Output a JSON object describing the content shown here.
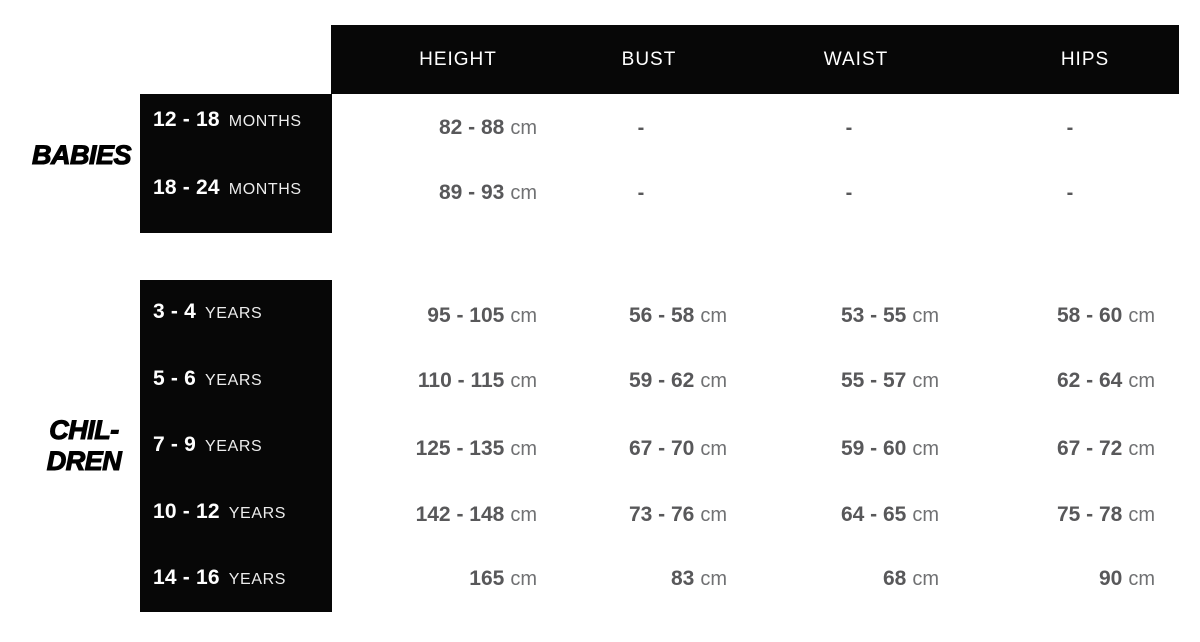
{
  "header": {
    "columns": [
      "HEIGHT",
      "BUST",
      "WAIST",
      "HIPS"
    ]
  },
  "sections": [
    {
      "label_lines": [
        "BABIES"
      ],
      "rows": [
        {
          "age": "12 - 18",
          "age_unit": "MONTHS",
          "height": {
            "value": "82 - 88",
            "unit": "cm"
          },
          "bust": {
            "value": "-",
            "unit": ""
          },
          "waist": {
            "value": "-",
            "unit": ""
          },
          "hips": {
            "value": "-",
            "unit": ""
          }
        },
        {
          "age": "18 - 24",
          "age_unit": "MONTHS",
          "height": {
            "value": "89 - 93",
            "unit": "cm"
          },
          "bust": {
            "value": "-",
            "unit": ""
          },
          "waist": {
            "value": "-",
            "unit": ""
          },
          "hips": {
            "value": "-",
            "unit": ""
          }
        }
      ]
    },
    {
      "label_lines": [
        "CHIL-",
        "DREN"
      ],
      "rows": [
        {
          "age": "3 - 4",
          "age_unit": "YEARS",
          "height": {
            "value": "95 - 105",
            "unit": "cm"
          },
          "bust": {
            "value": "56 - 58",
            "unit": "cm"
          },
          "waist": {
            "value": "53 - 55",
            "unit": "cm"
          },
          "hips": {
            "value": "58 - 60",
            "unit": "cm"
          }
        },
        {
          "age": "5 - 6",
          "age_unit": "YEARS",
          "height": {
            "value": "110 - 115",
            "unit": "cm"
          },
          "bust": {
            "value": "59 - 62",
            "unit": "cm"
          },
          "waist": {
            "value": "55 - 57",
            "unit": "cm"
          },
          "hips": {
            "value": "62 - 64",
            "unit": "cm"
          }
        },
        {
          "age": "7 - 9",
          "age_unit": "YEARS",
          "height": {
            "value": "125 - 135",
            "unit": "cm"
          },
          "bust": {
            "value": "67 - 70",
            "unit": "cm"
          },
          "waist": {
            "value": "59 - 60",
            "unit": "cm"
          },
          "hips": {
            "value": "67 - 72",
            "unit": "cm"
          }
        },
        {
          "age": "10 - 12",
          "age_unit": "YEARS",
          "height": {
            "value": "142 - 148",
            "unit": "cm"
          },
          "bust": {
            "value": "73 - 76",
            "unit": "cm"
          },
          "waist": {
            "value": "64 - 65",
            "unit": "cm"
          },
          "hips": {
            "value": "75 - 78",
            "unit": "cm"
          }
        },
        {
          "age": "14 - 16",
          "age_unit": "YEARS",
          "height": {
            "value": "165",
            "unit": "cm"
          },
          "bust": {
            "value": "83",
            "unit": "cm"
          },
          "waist": {
            "value": "68",
            "unit": "cm"
          },
          "hips": {
            "value": "90",
            "unit": "cm"
          }
        }
      ]
    }
  ],
  "colors": {
    "bar_black": "#070707",
    "value_number": "#58585a",
    "value_unit": "#707173",
    "box_label_unit": "#ececec"
  },
  "chart_data": {
    "type": "table",
    "title": "Kids size chart (babies and children)",
    "columns": [
      "HEIGHT",
      "BUST",
      "WAIST",
      "HIPS"
    ],
    "rows": [
      {
        "group": "BABIES",
        "age": "12 - 18 MONTHS",
        "height_cm": "82 - 88",
        "bust_cm": null,
        "waist_cm": null,
        "hips_cm": null
      },
      {
        "group": "BABIES",
        "age": "18 - 24 MONTHS",
        "height_cm": "89 - 93",
        "bust_cm": null,
        "waist_cm": null,
        "hips_cm": null
      },
      {
        "group": "CHILDREN",
        "age": "3 - 4 YEARS",
        "height_cm": "95 - 105",
        "bust_cm": "56 - 58",
        "waist_cm": "53 - 55",
        "hips_cm": "58 - 60"
      },
      {
        "group": "CHILDREN",
        "age": "5 - 6 YEARS",
        "height_cm": "110 - 115",
        "bust_cm": "59 - 62",
        "waist_cm": "55 - 57",
        "hips_cm": "62 - 64"
      },
      {
        "group": "CHILDREN",
        "age": "7 - 9 YEARS",
        "height_cm": "125 - 135",
        "bust_cm": "67 - 70",
        "waist_cm": "59 - 60",
        "hips_cm": "67 - 72"
      },
      {
        "group": "CHILDREN",
        "age": "10 - 12 YEARS",
        "height_cm": "142 - 148",
        "bust_cm": "73 - 76",
        "waist_cm": "64 - 65",
        "hips_cm": "75 - 78"
      },
      {
        "group": "CHILDREN",
        "age": "14 - 16 YEARS",
        "height_cm": "165",
        "bust_cm": "83",
        "waist_cm": "68",
        "hips_cm": "90"
      }
    ]
  }
}
